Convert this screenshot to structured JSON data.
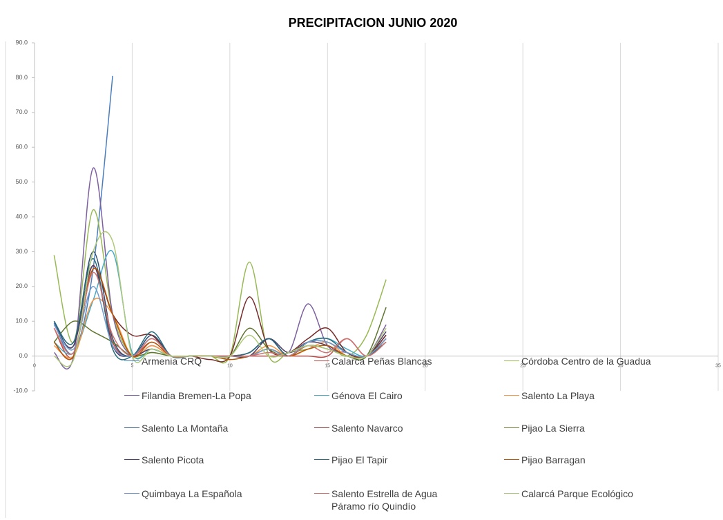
{
  "chart_data": {
    "type": "line",
    "title": "PRECIPITACION JUNIO 2020",
    "x": [
      1,
      2,
      3,
      4,
      5,
      6,
      7,
      8,
      9,
      10,
      11,
      12,
      13,
      14,
      15,
      16,
      17,
      18
    ],
    "xlim": [
      0,
      35
    ],
    "xticks": [
      0,
      5,
      10,
      15,
      20,
      25,
      30,
      35
    ],
    "ylim": [
      -10,
      90
    ],
    "yticks": [
      {
        "value": -10,
        "label": "-10.0"
      },
      {
        "value": 0,
        "label": "0.0"
      },
      {
        "value": 10,
        "label": "10.0"
      },
      {
        "value": 20,
        "label": "20.0"
      },
      {
        "value": 30,
        "label": "30.0"
      },
      {
        "value": 40,
        "label": "40.0"
      },
      {
        "value": 50,
        "label": "50.0"
      },
      {
        "value": 60,
        "label": "60.0"
      },
      {
        "value": 70,
        "label": "70.0"
      },
      {
        "value": 80,
        "label": "80.0"
      },
      {
        "value": 90,
        "label": "90.0"
      }
    ],
    "grid": true,
    "series": [
      {
        "name": "Armenia CRQ",
        "color": "#4a7ebb",
        "values": [
          9.5,
          1,
          25,
          80.5,
          null,
          null,
          null,
          null,
          null,
          null,
          null,
          null,
          null,
          null,
          null,
          null,
          null,
          null
        ]
      },
      {
        "name": "Calarca Peñas Blancas",
        "color": "#be4b48",
        "values": [
          8,
          0,
          26,
          4,
          0,
          4,
          0,
          0,
          0,
          0,
          0,
          0,
          0,
          0,
          0,
          5,
          0,
          5
        ]
      },
      {
        "name": "Córdoba Centro de la Guadua",
        "color": "#98b954",
        "values": [
          29,
          4,
          42,
          12,
          0,
          1,
          0,
          0,
          0,
          0,
          27,
          0,
          1,
          2,
          3,
          0,
          6,
          22
        ]
      },
      {
        "name": "Filandia Bremen-La Popa",
        "color": "#7d60a0",
        "values": [
          1,
          0,
          54,
          12,
          0,
          3,
          0,
          0,
          0,
          0,
          1,
          5,
          1,
          15,
          3,
          1,
          0,
          9
        ]
      },
      {
        "name": "Génova El Cairo",
        "color": "#46aac5",
        "values": [
          4,
          1,
          16,
          30,
          1,
          2,
          0,
          0,
          0,
          0,
          0,
          2,
          0,
          4,
          5,
          2,
          0,
          5
        ]
      },
      {
        "name": "Salento  La Playa",
        "color": "#f79646",
        "values": [
          3,
          0,
          16,
          12,
          0,
          3,
          0,
          0,
          0,
          0,
          0,
          3,
          0,
          2,
          4,
          0,
          0,
          4
        ]
      },
      {
        "name": "Salento  La Montaña",
        "color": "#2c4d75",
        "values": [
          10,
          3,
          30,
          5,
          0,
          6,
          0,
          0,
          0,
          0,
          1,
          5,
          0,
          4,
          4,
          1,
          0,
          6
        ]
      },
      {
        "name": "Salento Navarco",
        "color": "#772c2a",
        "values": [
          4,
          0,
          25,
          12,
          6,
          6,
          0,
          0,
          -1,
          0,
          17,
          2,
          1,
          5,
          8,
          1,
          0,
          6
        ]
      },
      {
        "name": "Pijao  La Sierra",
        "color": "#5f7530",
        "values": [
          4,
          10,
          7,
          4,
          0,
          1,
          0,
          0,
          0,
          0,
          8,
          2,
          0,
          3,
          2,
          0,
          0,
          14
        ]
      },
      {
        "name": "Salento  Picota",
        "color": "#4d3b62",
        "values": [
          9,
          3,
          26,
          3,
          0,
          2,
          0,
          0,
          0,
          0,
          0,
          5,
          1,
          4,
          3,
          0,
          0,
          7
        ]
      },
      {
        "name": "Pijao El Tapir",
        "color": "#276a7c",
        "values": [
          10,
          4,
          28,
          2,
          0,
          7,
          0,
          0,
          0,
          0,
          1,
          5,
          0,
          4,
          5,
          1,
          0,
          4
        ]
      },
      {
        "name": "Pijao Barragan",
        "color": "#b65708",
        "values": [
          4,
          0,
          25,
          12,
          0,
          4,
          0,
          0,
          0,
          -1,
          0,
          2,
          0,
          2,
          3,
          0,
          0,
          5
        ]
      },
      {
        "name": "Quimbaya La Española",
        "color": "#729aca",
        "values": [
          9,
          2,
          20,
          3,
          0,
          5,
          0,
          0,
          0,
          0,
          0,
          2,
          0,
          4,
          4,
          1,
          0,
          5
        ]
      },
      {
        "name": "Salento Estrella de Agua Páramo río Quindío",
        "color": "#cd7371",
        "values": [
          8,
          1,
          24,
          6,
          0,
          5,
          0,
          0,
          0,
          0,
          0,
          1,
          0,
          3,
          1,
          5,
          0,
          4
        ]
      },
      {
        "name": "Calarcá  Parque Ecológico",
        "color": "#afc97a",
        "values": [
          0,
          -1,
          30,
          33,
          0,
          2,
          0,
          0,
          0,
          0,
          6,
          0,
          1,
          3,
          2,
          0,
          0,
          8
        ]
      }
    ]
  }
}
